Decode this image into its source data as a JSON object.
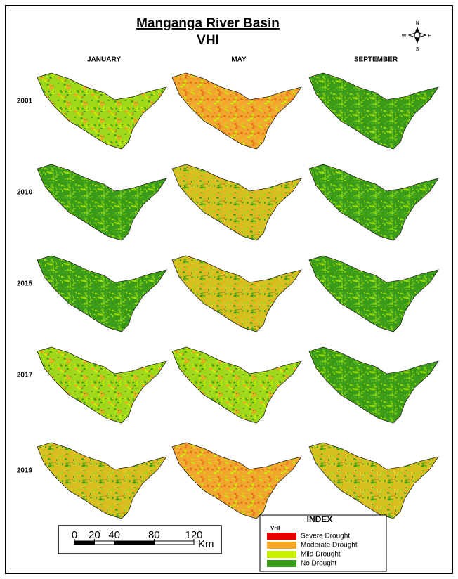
{
  "header": {
    "title": "Manganga River Basin",
    "subtitle": "VHI"
  },
  "north_arrow": {
    "n": "N",
    "s": "S",
    "e": "E",
    "w": "W"
  },
  "columns": [
    "JANUARY",
    "MAY",
    "SEPTEMBER"
  ],
  "rows": [
    "2001",
    "2010",
    "2015",
    "2017",
    "2019"
  ],
  "legend": {
    "title": "INDEX",
    "subtitle": "VHI",
    "items": [
      {
        "label": "Severe  Drought",
        "color": "#e60000"
      },
      {
        "label": "Moderate Drought",
        "color": "#f5a623"
      },
      {
        "label": "Mild Drought",
        "color": "#c8f000"
      },
      {
        "label": "No Drought",
        "color": "#3a9a1a"
      }
    ]
  },
  "scale_bar": {
    "ticks": [
      0,
      20,
      40,
      80,
      120
    ],
    "unit": "Km"
  }
}
